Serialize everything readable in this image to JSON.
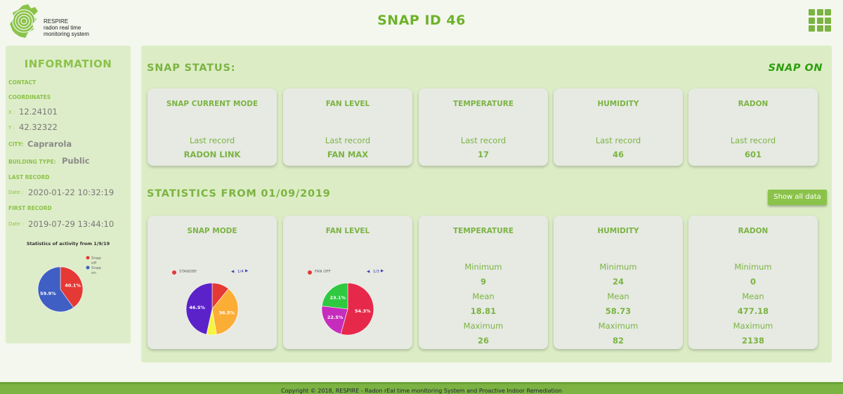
{
  "header": {
    "logo_lines": [
      "RESPIRE",
      "radon real time",
      "monitoring system"
    ],
    "title": "SNAP ID 46",
    "menu_icon": "grid-menu-icon"
  },
  "sidebar": {
    "title": "INFORMATION",
    "contact_label": "CONTACT",
    "coordinates_label": "COORDINATES",
    "x_label": "X :",
    "x_value": "12.24101",
    "y_label": "Y :",
    "y_value": "42.32322",
    "city_label": "CITY:",
    "city_value": "Caprarola",
    "building_label": "BUILDING TYPE:",
    "building_value": "Public",
    "last_record_label": "LAST RECORD",
    "last_date_label": "Date :",
    "last_date_value": "2020-01-22 10:32:19",
    "first_record_label": "FIRST RECORD",
    "first_date_label": "Date :",
    "first_date_value": "2019-07-29 13:44:10",
    "activity_chart": {
      "title": "Statistics of activity from 1/9/19",
      "legend": [
        {
          "label_lines": [
            "Snap",
            "off"
          ],
          "color": "#e53935"
        },
        {
          "label_lines": [
            "Snap",
            "on"
          ],
          "color": "#3f5fc4"
        }
      ],
      "slices": [
        {
          "label": "40.1%",
          "value": 40.1,
          "color": "#e53935"
        },
        {
          "label": "59.9%",
          "value": 59.9,
          "color": "#3f5fc4"
        }
      ]
    }
  },
  "status": {
    "title": "SNAP STATUS:",
    "state": "SNAP ON",
    "cards": [
      {
        "title": "SNAP CURRENT MODE",
        "record_label": "Last record",
        "value": "RADON LINK"
      },
      {
        "title": "FAN LEVEL",
        "record_label": "Last record",
        "value": "FAN MAX"
      },
      {
        "title": "TEMPERATURE",
        "record_label": "Last record",
        "value": "17"
      },
      {
        "title": "HUMIDITY",
        "record_label": "Last record",
        "value": "46"
      },
      {
        "title": "RADON",
        "record_label": "Last record",
        "value": "601"
      }
    ]
  },
  "statistics": {
    "title": "STATISTICS FROM 01/09/2019",
    "show_all_label": "Show all data",
    "snap_mode": {
      "title": "SNAP MODE",
      "legend_label": "STANDBY",
      "legend_color": "#e53935",
      "page": "1/4",
      "slices": [
        {
          "label": "",
          "value": 10.8,
          "color": "#e53935"
        },
        {
          "label": "36.5%",
          "value": 36.5,
          "color": "#fbad35"
        },
        {
          "label": "",
          "value": 6.2,
          "color": "#f5f542"
        },
        {
          "label": "46.5%",
          "value": 46.5,
          "color": "#5b22c9"
        }
      ]
    },
    "fan_level": {
      "title": "FAN LEVEL",
      "legend_label": "FAN OFF",
      "legend_color": "#e53935",
      "page": "1/3",
      "slices": [
        {
          "label": "54.3%",
          "value": 54.3,
          "color": "#e6294a"
        },
        {
          "label": "22.5%",
          "value": 22.5,
          "color": "#c62dbd"
        },
        {
          "label": "23.1%",
          "value": 23.1,
          "color": "#2ec940"
        }
      ]
    },
    "metrics": [
      {
        "title": "TEMPERATURE",
        "min_label": "Minimum",
        "min": "9",
        "mean_label": "Mean",
        "mean": "18.81",
        "max_label": "Maximum",
        "max": "26"
      },
      {
        "title": "HUMIDITY",
        "min_label": "Minimum",
        "min": "24",
        "mean_label": "Mean",
        "mean": "58.73",
        "max_label": "Maximum",
        "max": "82"
      },
      {
        "title": "RADON",
        "min_label": "Minimum",
        "min": "0",
        "mean_label": "Mean",
        "mean": "477.18",
        "max_label": "Maximum",
        "max": "2138"
      }
    ]
  },
  "footer": {
    "text": "Copyright © 2018, RESPIRE - Radon rEal time monitoring System and Proactive Indoor Remediation"
  }
}
